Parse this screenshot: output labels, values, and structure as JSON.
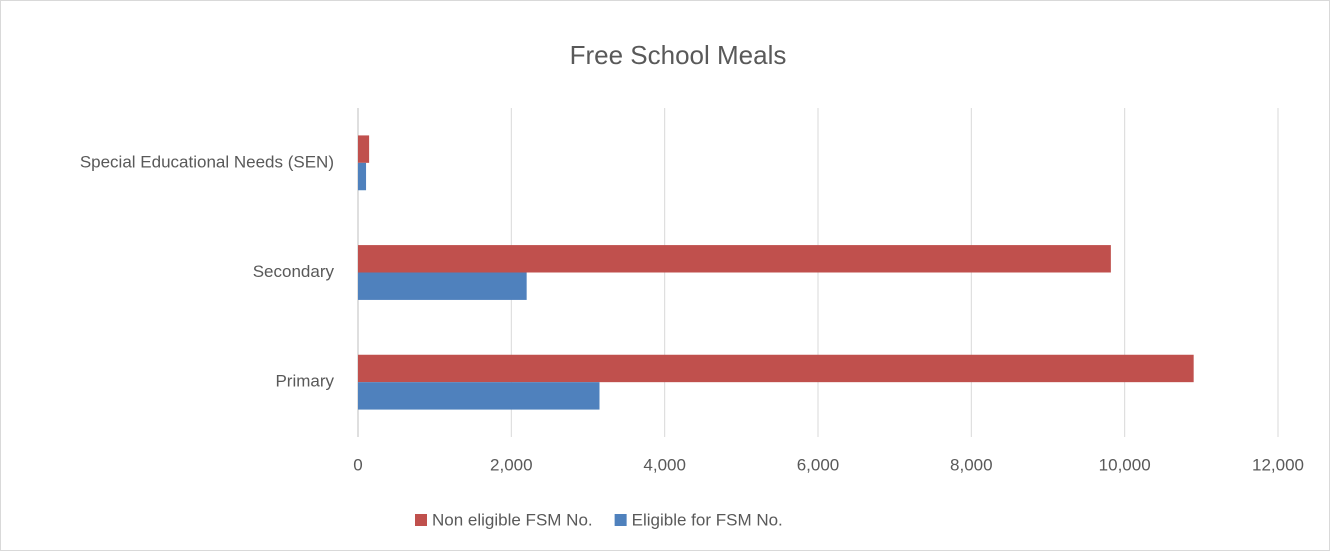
{
  "chart_data": {
    "type": "horizontal-bar",
    "title": "Free School Meals",
    "categories": [
      "Primary",
      "Secondary",
      "Special Educational Needs (SEN)"
    ],
    "series": [
      {
        "name": "Non eligible FSM No.",
        "color": "#c0504d",
        "values": [
          10900,
          9820,
          145
        ]
      },
      {
        "name": "Eligible for FSM No.",
        "color": "#4f81bd",
        "values": [
          3150,
          2200,
          105
        ]
      }
    ],
    "xlim": [
      0,
      12000
    ],
    "xticks": [
      0,
      {
        "value": 2000,
        "label": "2,000"
      },
      {
        "value": 4000,
        "label": "4,000"
      },
      {
        "value": 6000,
        "label": "6,000"
      },
      {
        "value": 8000,
        "label": "8,000"
      },
      {
        "value": 10000,
        "label": "10,000"
      },
      {
        "value": 12000,
        "label": "12,000"
      }
    ],
    "grid": true,
    "legend": "bottom"
  }
}
